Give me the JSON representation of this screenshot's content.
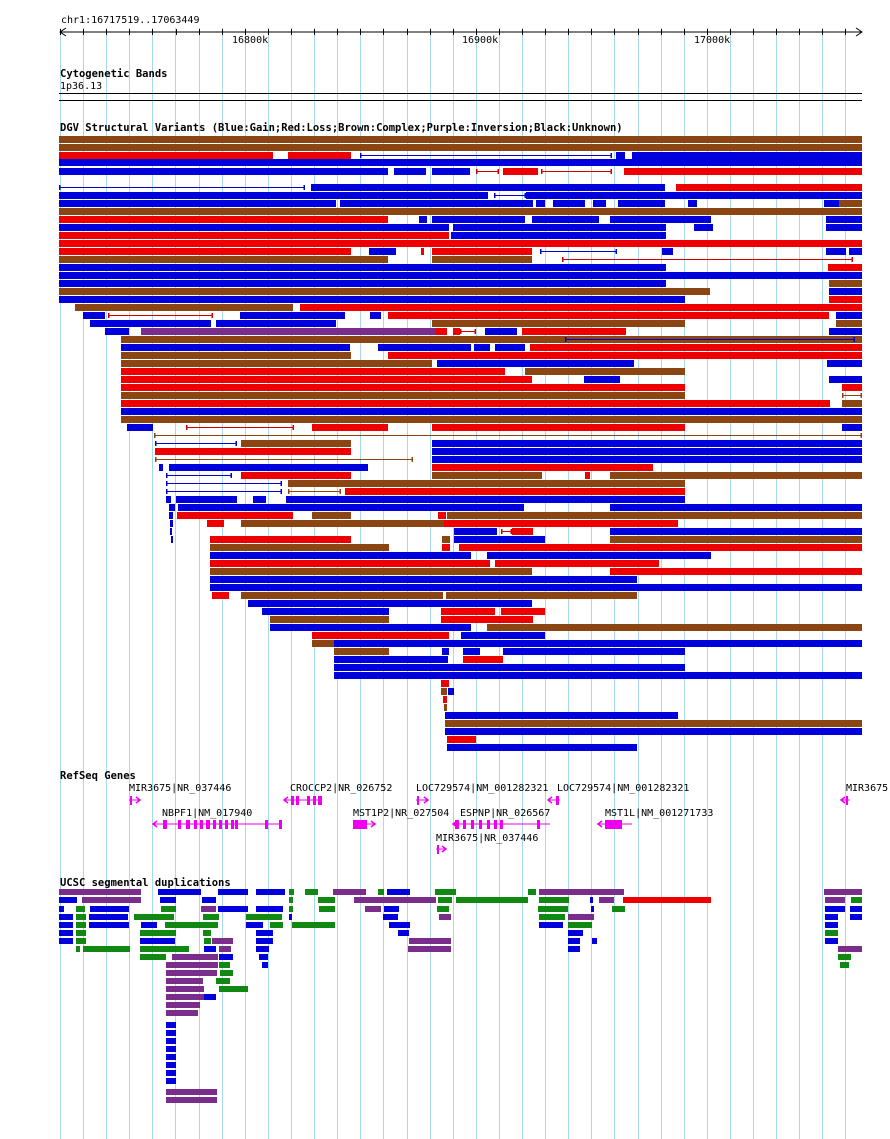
{
  "ruler": {
    "range_label": "chr1:16717519..17063449",
    "ticks": [
      "16800k",
      "16900k",
      "17000k"
    ]
  },
  "cytoband": {
    "title": "Cytogenetic Bands",
    "band": "1p36.13"
  },
  "dgv": {
    "title": "DGV Structural Variants (Blue:Gain;Red:Loss;Brown:Complex;Purple:Inversion;Black:Unknown)",
    "colors": {
      "gain": "#0000dd",
      "loss": "#ee0000",
      "complex": "#8b4513",
      "inversion": "#7b2d8b",
      "line_blue": "#0000cc",
      "line_red": "#cc0000",
      "line_brown": "#8b4513"
    }
  },
  "refseq": {
    "title": "RefSeq Genes",
    "color": "#ee00ee",
    "genes": [
      {
        "label": "MIR3675|NR_037446"
      },
      {
        "label": "CROCCP2|NR_026752"
      },
      {
        "label": "LOC729574|NM_001282321"
      },
      {
        "label": "LOC729574|NM_001282321"
      },
      {
        "label": "MIR3675"
      },
      {
        "label": "NBPF1|NM_017940"
      },
      {
        "label": "MST1P2|NR_027504"
      },
      {
        "label": "ESPNP|NR_026567"
      },
      {
        "label": "MST1L|NM_001271733"
      },
      {
        "label": "MIR3675|NR_037446"
      }
    ]
  },
  "segdup": {
    "title": "UCSC segmental duplications",
    "colors": {
      "green": "#118811",
      "blue": "#0000dd",
      "purple": "#7b2d8b",
      "red": "#ee0000"
    }
  }
}
